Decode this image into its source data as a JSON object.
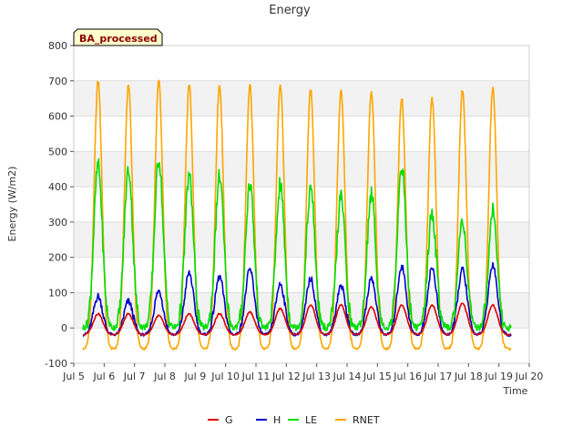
{
  "chart_data": {
    "type": "line",
    "title": "Energy",
    "xlabel": "Time",
    "ylabel": "Energy (W/m2)",
    "badge": "BA_processed",
    "xlim": [
      5,
      20
    ],
    "ylim": [
      -100,
      800
    ],
    "x_ticks": [
      5,
      6,
      7,
      8,
      9,
      10,
      11,
      12,
      13,
      14,
      15,
      16,
      17,
      18,
      19,
      20
    ],
    "x_tick_labels": [
      "Jul 5",
      "Jul 6",
      "Jul 7",
      "Jul 8",
      "Jul 9",
      "Jul 10",
      "Jul 11",
      "Jul 12",
      "Jul 13",
      "Jul 14",
      "Jul 15",
      "Jul 16",
      "Jul 17",
      "Jul 18",
      "Jul 19",
      "Jul 20"
    ],
    "y_ticks": [
      -100,
      0,
      100,
      200,
      300,
      400,
      500,
      600,
      700,
      800
    ],
    "y_tick_labels": [
      "-100",
      "0",
      "100",
      "200",
      "300",
      "400",
      "500",
      "600",
      "700",
      "800"
    ],
    "data_range": [
      5.3,
      19.4
    ],
    "day_peak_times": [
      5.8,
      6.8,
      7.8,
      8.8,
      9.8,
      10.8,
      11.8,
      12.8,
      13.8,
      14.8,
      15.8,
      16.8,
      17.8,
      18.8
    ],
    "grid": true,
    "legend_position": "bottom-center",
    "series": [
      {
        "name": "G",
        "color": "#dd0000",
        "night": -20,
        "peaks": [
          40,
          40,
          35,
          40,
          40,
          45,
          55,
          65,
          65,
          60,
          65,
          65,
          70,
          65
        ]
      },
      {
        "name": "H",
        "color": "#0000cc",
        "night": -20,
        "peaks": [
          90,
          75,
          105,
          155,
          145,
          165,
          125,
          140,
          120,
          140,
          175,
          170,
          165,
          180
        ]
      },
      {
        "name": "LE",
        "color": "#00dd00",
        "night": 0,
        "peaks": [
          460,
          450,
          480,
          430,
          430,
          410,
          405,
          395,
          370,
          380,
          460,
          325,
          310,
          335
        ]
      },
      {
        "name": "RNET",
        "color": "#ffa500",
        "night": -60,
        "peaks": [
          700,
          690,
          700,
          690,
          685,
          690,
          690,
          675,
          670,
          670,
          650,
          650,
          675,
          680
        ]
      }
    ]
  }
}
